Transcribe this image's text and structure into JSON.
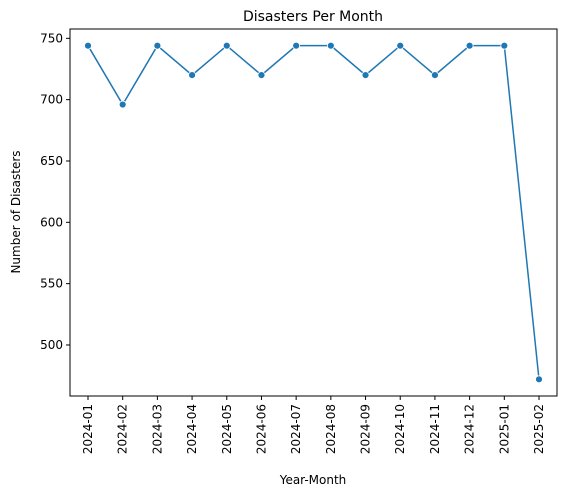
{
  "chart_data": {
    "type": "line",
    "title": "Disasters Per Month",
    "xlabel": "Year-Month",
    "ylabel": "Number of Disasters",
    "categories": [
      "2024-01",
      "2024-02",
      "2024-03",
      "2024-04",
      "2024-05",
      "2024-06",
      "2024-07",
      "2024-08",
      "2024-09",
      "2024-10",
      "2024-11",
      "2024-12",
      "2025-01",
      "2025-02"
    ],
    "values": [
      744,
      696,
      744,
      720,
      744,
      720,
      744,
      744,
      720,
      744,
      720,
      744,
      744,
      472
    ],
    "yticks": [
      500,
      550,
      600,
      650,
      700,
      750
    ],
    "ylim": [
      458.4,
      757.6
    ],
    "grid": false,
    "legend": "none",
    "marker": "circle",
    "color": "#1f77b4"
  }
}
